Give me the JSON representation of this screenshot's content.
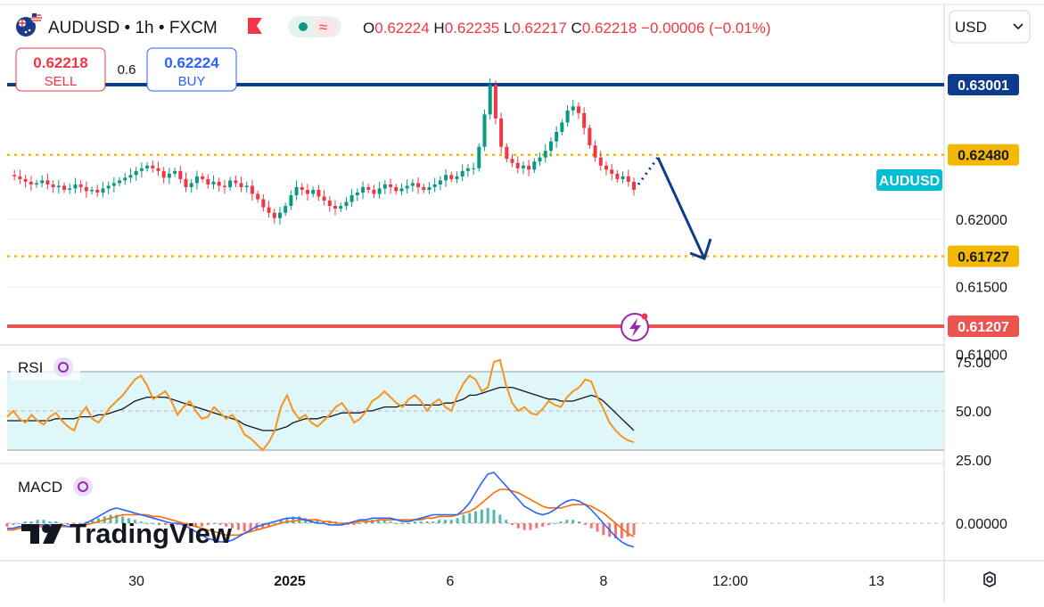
{
  "header": {
    "symbol": "AUDUSD",
    "interval": "1h",
    "source": "FXCM",
    "ohlc": {
      "o_label": "O",
      "o": "0.62224",
      "h_label": "H",
      "h": "0.62235",
      "l_label": "L",
      "l": "0.62217",
      "c_label": "C",
      "c": "0.62218",
      "change": "−0.00006 (−0.01%)"
    },
    "sell_price": "0.62218",
    "sell_label": "SELL",
    "spread": "0.6",
    "buy_price": "0.62224",
    "buy_label": "BUY",
    "currency": "USD",
    "sep": "•"
  },
  "watermark": "TradingView",
  "colors": {
    "up": "#089981",
    "down": "#f23645",
    "navy": "#0d3b8e",
    "gold": "#f5b800",
    "resistance_red": "#ef5350",
    "rsi_line": "#f7931e",
    "rsi_fill": "#e0f7fa",
    "macd_line": "#2962ff",
    "signal_line": "#ff6d00",
    "symbol_tag": "#00bcd4"
  },
  "chart_data": [
    {
      "type": "candlestick",
      "title": "AUDUSD • 1h • FXCM",
      "ylim": [
        0.6097,
        0.635
      ],
      "y_ticks": [
        "0.62000",
        "0.61500",
        "0.61000"
      ],
      "x_ticks": [
        "30",
        "2025",
        "6",
        "8",
        "12:00",
        "13"
      ],
      "horizontal_levels": [
        {
          "value": 0.63001,
          "label": "0.63001",
          "style": "solid",
          "color": "navy"
        },
        {
          "value": 0.6248,
          "label": "0.62480",
          "style": "dotted",
          "color": "gold"
        },
        {
          "value": 0.61727,
          "label": "0.61727",
          "style": "dotted",
          "color": "gold"
        },
        {
          "value": 0.61207,
          "label": "0.61207",
          "style": "solid",
          "color": "red"
        }
      ],
      "symbol_tag": "AUDUSD",
      "price_path": [
        0.6233,
        0.6232,
        0.623,
        0.6228,
        0.6226,
        0.6227,
        0.6229,
        0.6226,
        0.6224,
        0.6225,
        0.6222,
        0.6223,
        0.6226,
        0.6224,
        0.6221,
        0.6222,
        0.622,
        0.6223,
        0.6225,
        0.6227,
        0.6229,
        0.6231,
        0.6233,
        0.6236,
        0.6238,
        0.624,
        0.6238,
        0.6236,
        0.6231,
        0.6234,
        0.6236,
        0.623,
        0.6224,
        0.6227,
        0.6232,
        0.623,
        0.6226,
        0.6228,
        0.6225,
        0.6224,
        0.6229,
        0.6227,
        0.6224,
        0.6225,
        0.6219,
        0.6215,
        0.6209,
        0.6205,
        0.6201,
        0.6205,
        0.621,
        0.6218,
        0.6224,
        0.6222,
        0.6219,
        0.6222,
        0.6217,
        0.6214,
        0.621,
        0.6208,
        0.621,
        0.6213,
        0.6218,
        0.622,
        0.6224,
        0.6222,
        0.6219,
        0.6223,
        0.6226,
        0.6224,
        0.6221,
        0.6223,
        0.6225,
        0.6227,
        0.6224,
        0.6222,
        0.6224,
        0.6226,
        0.6229,
        0.6233,
        0.623,
        0.6232,
        0.6236,
        0.6238,
        0.6238,
        0.6254,
        0.6278,
        0.63,
        0.6275,
        0.6254,
        0.6245,
        0.6242,
        0.6238,
        0.624,
        0.6237,
        0.6243,
        0.6246,
        0.6251,
        0.6258,
        0.6265,
        0.6272,
        0.6281,
        0.6284,
        0.6279,
        0.6268,
        0.6255,
        0.6246,
        0.624,
        0.6237,
        0.6234,
        0.623,
        0.6232,
        0.6228,
        0.6222
      ],
      "projection": {
        "from": 0.6246,
        "to": 0.6171
      }
    },
    {
      "type": "line",
      "title": "RSI",
      "ylim": [
        22,
        80
      ],
      "y_ticks": [
        "75.00",
        "50.00",
        "25.00"
      ],
      "band": [
        30,
        70
      ],
      "midline": 50,
      "series": [
        {
          "name": "RSI",
          "values": [
            47,
            50,
            46,
            44,
            48,
            45,
            43,
            47,
            49,
            45,
            42,
            40,
            48,
            52,
            46,
            44,
            48,
            52,
            55,
            58,
            62,
            66,
            68,
            63,
            56,
            58,
            60,
            55,
            48,
            52,
            55,
            50,
            46,
            47,
            52,
            49,
            46,
            48,
            44,
            38,
            36,
            33,
            30,
            34,
            40,
            52,
            58,
            50,
            46,
            48,
            44,
            42,
            45,
            48,
            52,
            54,
            50,
            44,
            46,
            50,
            55,
            57,
            60,
            57,
            54,
            52,
            56,
            58,
            55,
            50,
            54,
            56,
            52,
            50,
            58,
            64,
            68,
            66,
            60,
            62,
            75,
            76,
            63,
            54,
            50,
            52,
            49,
            48,
            51,
            55,
            53,
            52,
            57,
            60,
            62,
            66,
            65,
            57,
            51,
            44,
            40,
            37,
            35,
            34
          ]
        },
        {
          "name": "RSI MA",
          "values": [
            45,
            45,
            45,
            45,
            45,
            45,
            45,
            45,
            46,
            46,
            46,
            46,
            47,
            47,
            47,
            48,
            48,
            49,
            50,
            51,
            53,
            55,
            56,
            57,
            57,
            57,
            57,
            56,
            55,
            54,
            53,
            52,
            51,
            50,
            49,
            48,
            47,
            46,
            45,
            43,
            42,
            41,
            40,
            40,
            40,
            41,
            42,
            44,
            45,
            46,
            46,
            46,
            47,
            47,
            48,
            49,
            49,
            49,
            49,
            50,
            50,
            51,
            52,
            52,
            52,
            53,
            53,
            53,
            53,
            53,
            53,
            53,
            54,
            54,
            55,
            56,
            58,
            58,
            59,
            60,
            61,
            62,
            62,
            62,
            61,
            60,
            59,
            58,
            57,
            56,
            56,
            55,
            55,
            55,
            56,
            57,
            58,
            57,
            55,
            52,
            49,
            46,
            43,
            40
          ]
        }
      ]
    },
    {
      "type": "bar",
      "title": "MACD",
      "y_ticks": [
        "0.00000"
      ],
      "zero_line": 0,
      "series": [
        {
          "name": "Histogram",
          "values": [
            -2,
            -1,
            0,
            1,
            1,
            2,
            2,
            1,
            1,
            0,
            -1,
            -1,
            0,
            1,
            2,
            3,
            4,
            5,
            5,
            4,
            3,
            2,
            1,
            0,
            0,
            -1,
            -1,
            -1,
            -1,
            -2,
            -2,
            -2,
            -2,
            -1,
            0,
            -1,
            -2,
            -3,
            -4,
            -5,
            -5,
            -4,
            -3,
            -2,
            0,
            2,
            3,
            4,
            4,
            3,
            2,
            2,
            1,
            1,
            1,
            0,
            -1,
            -1,
            0,
            1,
            2,
            2,
            2,
            1,
            0,
            0,
            0,
            1,
            1,
            1,
            1,
            2,
            2,
            2,
            3,
            5,
            6,
            7,
            8,
            9,
            8,
            5,
            2,
            -1,
            -3,
            -4,
            -4,
            -3,
            -2,
            -1,
            0,
            1,
            2,
            2,
            1,
            -1,
            -3,
            -5,
            -7,
            -8,
            -9,
            -9,
            -8,
            -7
          ]
        },
        {
          "name": "MACD",
          "values": [
            -3,
            -3,
            -2,
            -2,
            -2,
            -1,
            -1,
            -1,
            -1,
            -1,
            -2,
            -2,
            -1,
            0,
            2,
            4,
            6,
            8,
            9,
            8,
            7,
            6,
            5,
            4,
            3,
            2,
            1,
            0,
            0,
            -1,
            -3,
            -5,
            -7,
            -9,
            -10,
            -11,
            -11,
            -10,
            -8,
            -6,
            -4,
            -2,
            -1,
            0,
            1,
            2,
            3,
            3,
            3,
            2,
            1,
            0,
            0,
            -1,
            -1,
            -1,
            0,
            1,
            2,
            2,
            3,
            3,
            3,
            3,
            2,
            1,
            1,
            2,
            3,
            4,
            5,
            5,
            5,
            5,
            5,
            8,
            12,
            18,
            24,
            29,
            30,
            26,
            22,
            18,
            14,
            10,
            8,
            6,
            5,
            6,
            8,
            11,
            13,
            14,
            13,
            11,
            8,
            4,
            0,
            -4,
            -8,
            -11,
            -13,
            -14
          ]
        },
        {
          "name": "Signal",
          "values": [
            -4,
            -4,
            -3,
            -3,
            -3,
            -2,
            -2,
            -2,
            -2,
            -2,
            -2,
            -2,
            -2,
            -1,
            0,
            1,
            2,
            3,
            4,
            5,
            5,
            5,
            5,
            5,
            4,
            4,
            3,
            2,
            1,
            0,
            -1,
            -2,
            -3,
            -4,
            -5,
            -6,
            -7,
            -7,
            -7,
            -6,
            -5,
            -4,
            -3,
            -2,
            -1,
            0,
            1,
            1,
            2,
            2,
            2,
            2,
            1,
            1,
            0,
            0,
            0,
            0,
            1,
            1,
            1,
            2,
            2,
            2,
            2,
            2,
            2,
            2,
            2,
            3,
            3,
            4,
            4,
            4,
            5,
            6,
            7,
            9,
            12,
            15,
            18,
            20,
            20,
            19,
            18,
            16,
            14,
            12,
            10,
            9,
            9,
            9,
            10,
            11,
            11,
            11,
            10,
            8,
            6,
            3,
            0,
            -3,
            -6,
            -8
          ]
        }
      ]
    }
  ]
}
